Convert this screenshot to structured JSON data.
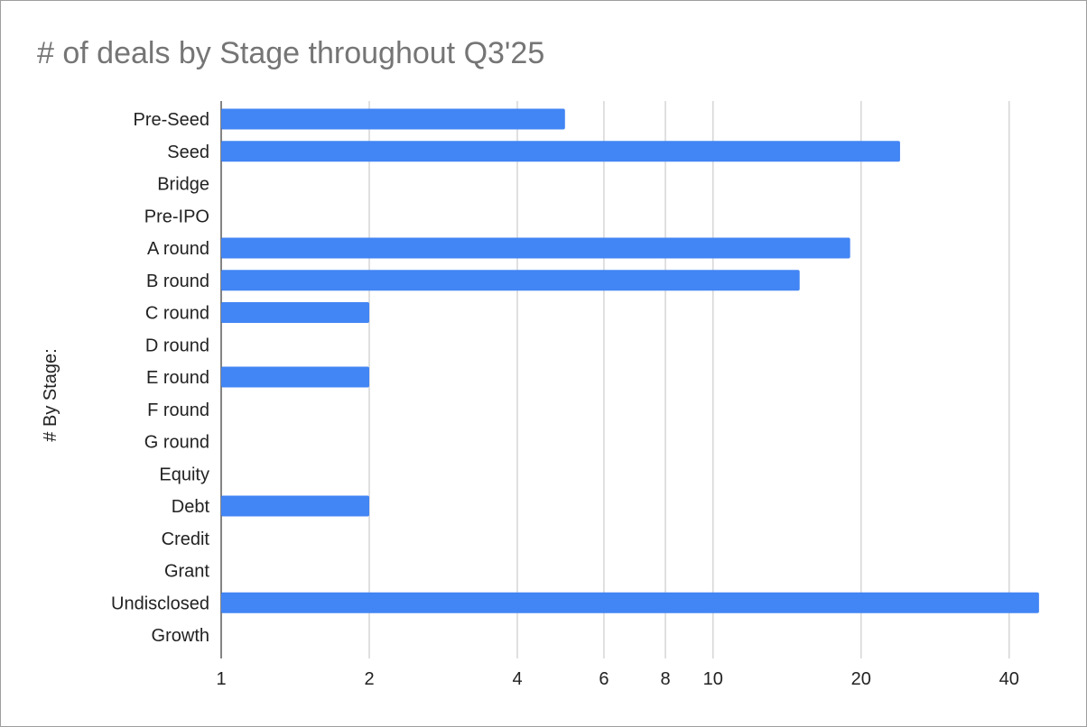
{
  "chart_data": {
    "type": "bar",
    "orientation": "horizontal",
    "title": "# of deals by Stage throughout Q3'25",
    "ylabel": "# By Stage:",
    "xlabel": "",
    "x_scale": "log",
    "xlim": [
      1,
      50
    ],
    "x_ticks": [
      1,
      2,
      4,
      6,
      8,
      10,
      20,
      40
    ],
    "x_tick_labels": [
      "1",
      "2",
      "4",
      "6",
      "8",
      "10",
      "20",
      "40"
    ],
    "grid": true,
    "legend": "none",
    "bar_color": "#4285f4",
    "categories": [
      "Pre-Seed",
      "Seed",
      "Bridge",
      "Pre-IPO",
      "A round",
      "B round",
      "C round",
      "D round",
      "E round",
      "F round",
      "G round",
      "Equity",
      "Debt",
      "Credit",
      "Grant",
      "Undisclosed",
      "Growth"
    ],
    "values": [
      5,
      24,
      0,
      0,
      19,
      15,
      2,
      0,
      2,
      0,
      0,
      0,
      2,
      0,
      0,
      46,
      0
    ]
  }
}
